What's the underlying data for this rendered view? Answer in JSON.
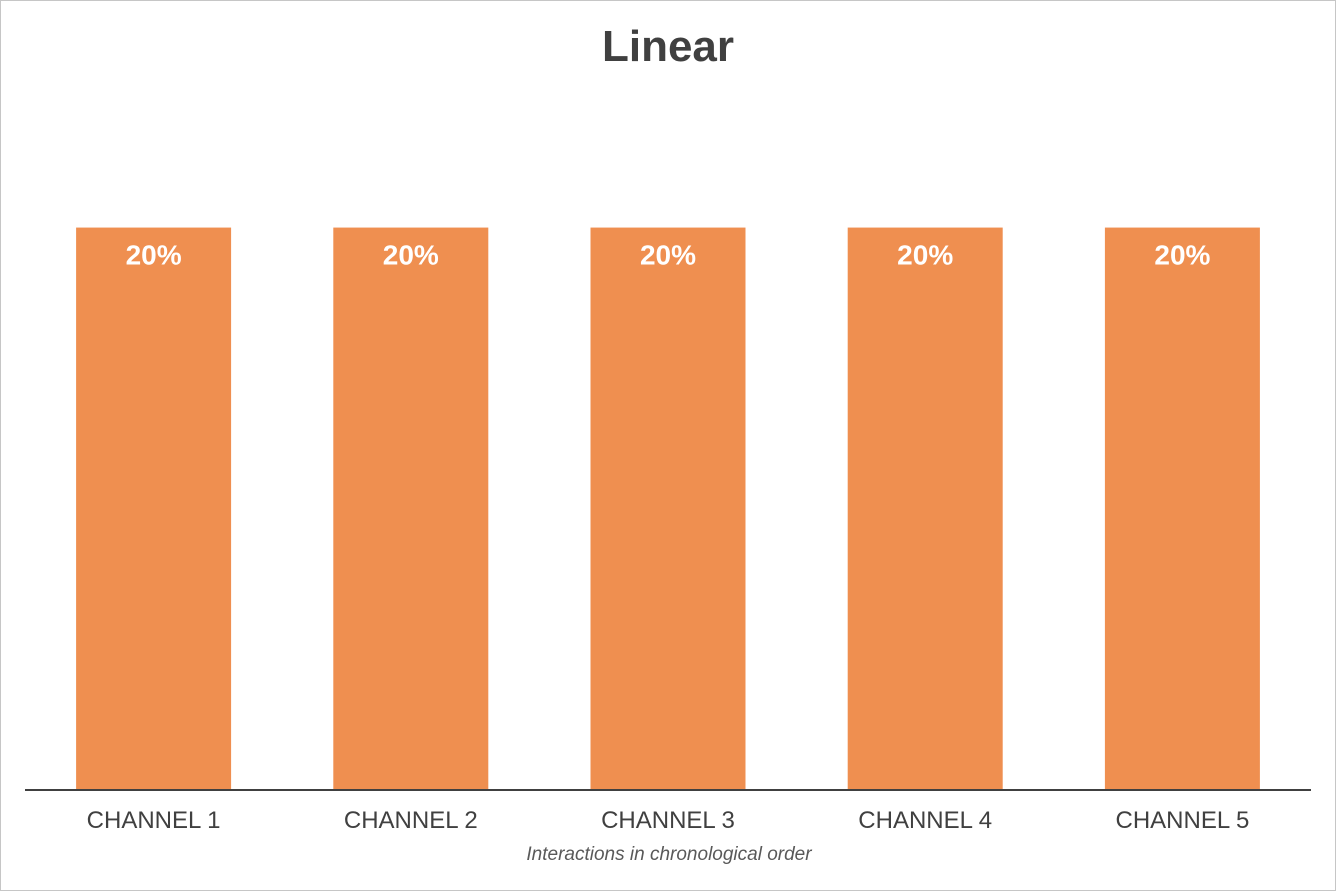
{
  "chart_data": {
    "type": "bar",
    "title": "Linear",
    "categories": [
      "CHANNEL 1",
      "CHANNEL 2",
      "CHANNEL 3",
      "CHANNEL 4",
      "CHANNEL 5"
    ],
    "values": [
      20,
      20,
      20,
      20,
      20
    ],
    "data_labels": [
      "20%",
      "20%",
      "20%",
      "20%",
      "20%"
    ],
    "xlabel": "Interactions in chronological order",
    "ylabel": "",
    "ylim": [
      0,
      28
    ],
    "grid": false,
    "legend": "none",
    "bar_color": "#EF8F50",
    "text_color": "#404040",
    "axis_color": "#404040"
  }
}
